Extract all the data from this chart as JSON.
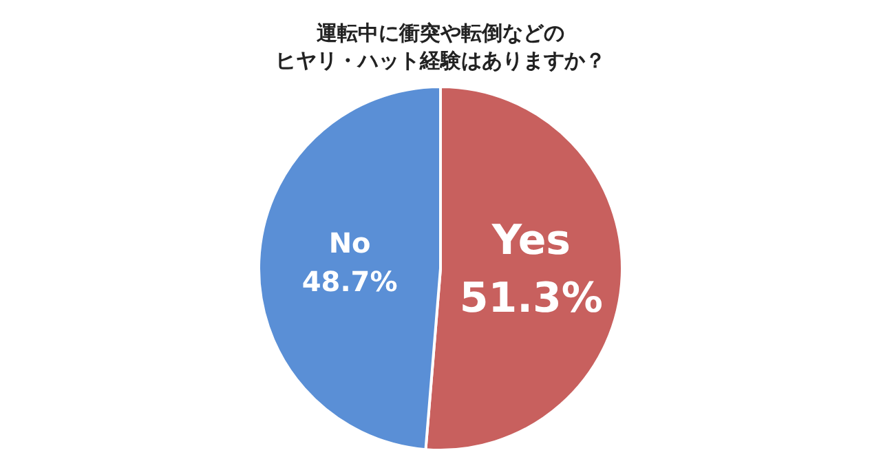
{
  "chart_data": {
    "type": "pie",
    "title": "運転中に衝突や転倒などの",
    "subtitle": "ヒヤリ・ハット経験はありますか？",
    "categories": [
      "Yes",
      "No"
    ],
    "values": [
      51.3,
      48.7
    ],
    "value_labels": [
      "51.3%",
      "48.7%"
    ],
    "colors": [
      "#c8605e",
      "#5a8fd6"
    ],
    "legend": false
  }
}
